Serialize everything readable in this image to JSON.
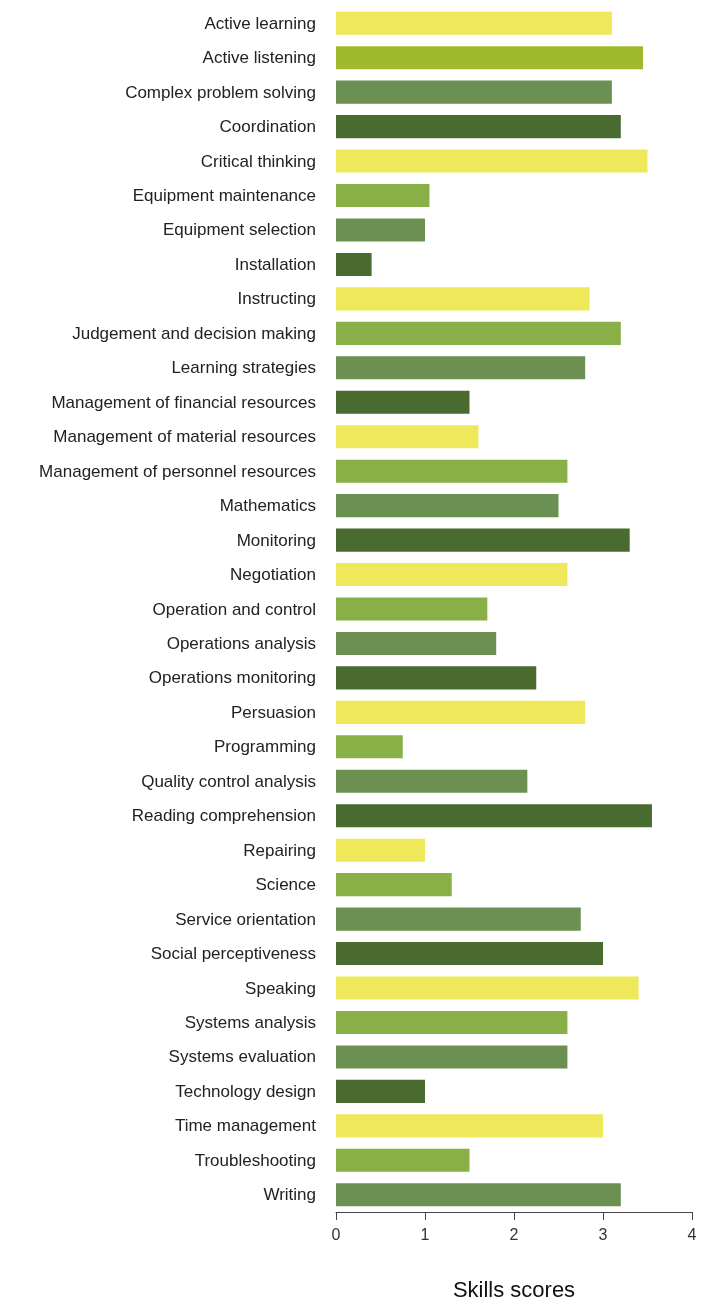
{
  "chart_data": {
    "type": "bar",
    "orientation": "horizontal",
    "xlabel": "Skills scores",
    "categories": [
      "Active learning",
      "Active listening",
      "Complex problem solving",
      "Coordination",
      "Critical thinking",
      "Equipment maintenance",
      "Equipment selection",
      "Installation",
      "Instructing",
      "Judgement and decision making",
      "Learning strategies",
      "Management of financial resources",
      "Management of material resources",
      "Management of personnel resources",
      "Mathematics",
      "Monitoring",
      "Negotiation",
      "Operation and control",
      "Operations analysis",
      "Operations monitoring",
      "Persuasion",
      "Programming",
      "Quality control analysis",
      "Reading comprehension",
      "Repairing",
      "Science",
      "Service orientation",
      "Social perceptiveness",
      "Speaking",
      "Systems analysis",
      "Systems evaluation",
      "Technology design",
      "Time management",
      "Troubleshooting",
      "Writing"
    ],
    "values": [
      3.1,
      3.45,
      3.1,
      3.2,
      3.5,
      1.05,
      1.0,
      0.4,
      2.85,
      3.2,
      2.8,
      1.5,
      1.6,
      2.6,
      2.5,
      3.3,
      2.6,
      1.7,
      1.8,
      2.25,
      2.8,
      0.75,
      2.15,
      3.55,
      1.0,
      1.3,
      2.75,
      3.0,
      3.4,
      2.6,
      2.6,
      1.0,
      3.0,
      1.5,
      3.2
    ],
    "colors": [
      "#eee85a",
      "#9fba2e",
      "#6b9052",
      "#4a6b2f",
      "#eee85a",
      "#88b046",
      "#6b9052",
      "#4a6b2f",
      "#eee85a",
      "#88b046",
      "#6b9052",
      "#4a6b2f",
      "#eee85a",
      "#88b046",
      "#6b9052",
      "#4a6b2f",
      "#eee85a",
      "#88b046",
      "#6b9052",
      "#4a6b2f",
      "#eee85a",
      "#88b046",
      "#6b9052",
      "#4a6b2f",
      "#eee85a",
      "#88b046",
      "#6b9052",
      "#4a6b2f",
      "#eee85a",
      "#88b046",
      "#6b9052",
      "#4a6b2f",
      "#eee85a",
      "#88b046",
      "#6b9052"
    ],
    "xlim": [
      0,
      4
    ],
    "xticks": [
      0,
      1,
      2,
      3,
      4
    ],
    "grid": false
  }
}
